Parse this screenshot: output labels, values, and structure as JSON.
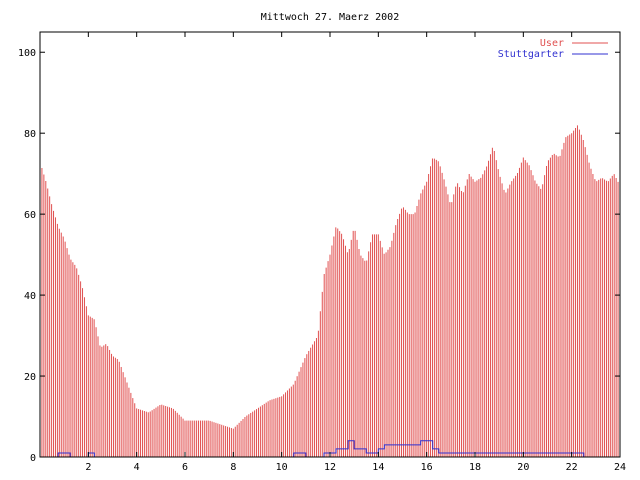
{
  "chart_data": {
    "type": "bar",
    "title": "Mittwoch 27. Maerz 2002",
    "xlabel": "",
    "ylabel": "",
    "xlim": [
      0,
      24
    ],
    "ylim": [
      0,
      105
    ],
    "x_ticks": [
      2,
      4,
      6,
      8,
      10,
      12,
      14,
      16,
      18,
      20,
      22,
      24
    ],
    "x_tick_labels": [
      "2",
      "4",
      "6",
      "8",
      "10",
      "12",
      "14",
      "16",
      "18",
      "20",
      "22",
      "24"
    ],
    "y_ticks": [
      0,
      20,
      40,
      60,
      80,
      100
    ],
    "y_tick_labels": [
      "0",
      "20",
      "40",
      "60",
      "80",
      "100"
    ],
    "grid": false,
    "legend_position": "top-right",
    "x_keypoints": [
      0,
      0.25,
      0.5,
      0.75,
      1.0,
      1.25,
      1.5,
      1.75,
      2.0,
      2.25,
      2.5,
      2.75,
      3.0,
      3.25,
      3.5,
      4.0,
      4.5,
      5.0,
      5.5,
      6.0,
      6.5,
      7.0,
      7.5,
      8.0,
      8.5,
      9.0,
      9.5,
      10.0,
      10.5,
      11.0,
      11.5,
      11.75,
      12.0,
      12.25,
      12.5,
      12.75,
      13.0,
      13.25,
      13.5,
      13.75,
      14.0,
      14.25,
      14.5,
      14.75,
      15.0,
      15.25,
      15.5,
      15.75,
      16.0,
      16.25,
      16.5,
      16.75,
      17.0,
      17.25,
      17.5,
      17.75,
      18.0,
      18.25,
      18.5,
      18.75,
      19.0,
      19.25,
      19.5,
      19.75,
      20.0,
      20.25,
      20.5,
      20.75,
      21.0,
      21.25,
      21.5,
      21.75,
      22.0,
      22.25,
      22.5,
      22.75,
      23.0,
      23.25,
      23.5,
      23.75,
      24.0
    ],
    "series": [
      {
        "name": "User",
        "color": "#e05050",
        "values": [
          73,
          68,
          62,
          57,
          54,
          49,
          47,
          42,
          35,
          34,
          27,
          28,
          25,
          24,
          20,
          12,
          11,
          13,
          12,
          9,
          9,
          9,
          8,
          7,
          10,
          12,
          14,
          15,
          18,
          25,
          30,
          45,
          50,
          57,
          55,
          50,
          57,
          50,
          48,
          55,
          55,
          50,
          52,
          58,
          62,
          60,
          60,
          65,
          68,
          74,
          73,
          68,
          62,
          68,
          65,
          70,
          68,
          69,
          72,
          77,
          70,
          65,
          68,
          70,
          74,
          72,
          68,
          66,
          73,
          75,
          74,
          79,
          80,
          82,
          78,
          72,
          68,
          69,
          68,
          70,
          67
        ]
      },
      {
        "name": "Stuttgarter",
        "color": "#3030d0",
        "values": [
          0,
          0,
          0,
          1,
          1,
          0,
          0,
          0,
          1,
          0,
          0,
          0,
          0,
          0,
          0,
          0,
          0,
          0,
          0,
          0,
          0,
          0,
          0,
          0,
          0,
          0,
          0,
          0,
          1,
          0,
          0,
          1,
          1,
          2,
          2,
          4,
          2,
          2,
          1,
          1,
          2,
          3,
          3,
          3,
          3,
          3,
          3,
          4,
          4,
          2,
          1,
          1,
          1,
          1,
          1,
          1,
          1,
          1,
          1,
          1,
          1,
          1,
          1,
          1,
          1,
          1,
          1,
          1,
          1,
          1,
          1,
          1,
          1,
          1,
          0,
          0,
          0,
          0,
          0,
          0,
          0
        ]
      }
    ]
  }
}
